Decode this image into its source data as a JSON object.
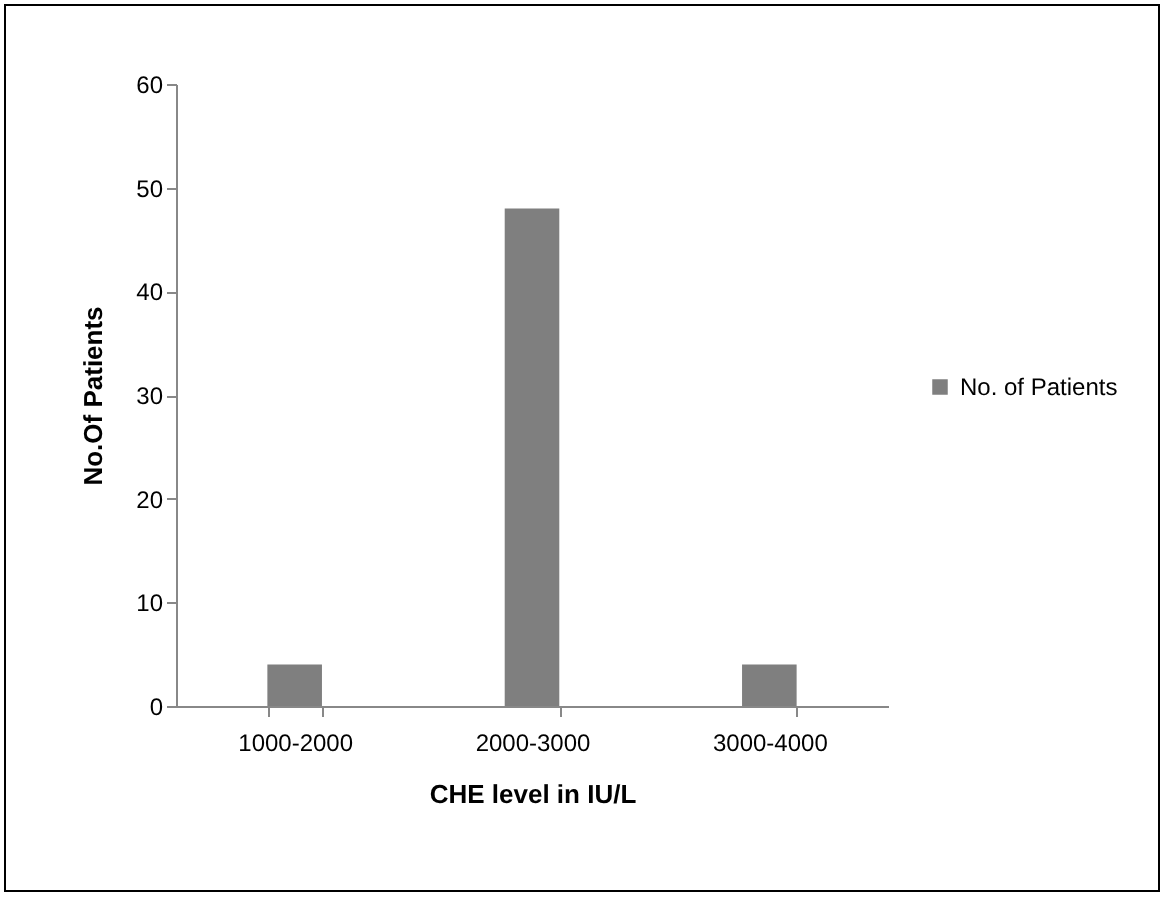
{
  "chart_data": {
    "type": "bar",
    "xlabel": "CHE level in IU/L",
    "ylabel": "No.Of Patients",
    "categories": [
      "1000-2000",
      "2000-3000",
      "3000-4000"
    ],
    "series": [
      {
        "name": "No. of Patients",
        "color": "#7f7f7f",
        "values": [
          4,
          48,
          4
        ]
      }
    ],
    "ylim": [
      0,
      60
    ],
    "yticks": [
      0,
      10,
      20,
      30,
      40,
      50,
      60
    ],
    "grid": false,
    "legend": "right"
  }
}
